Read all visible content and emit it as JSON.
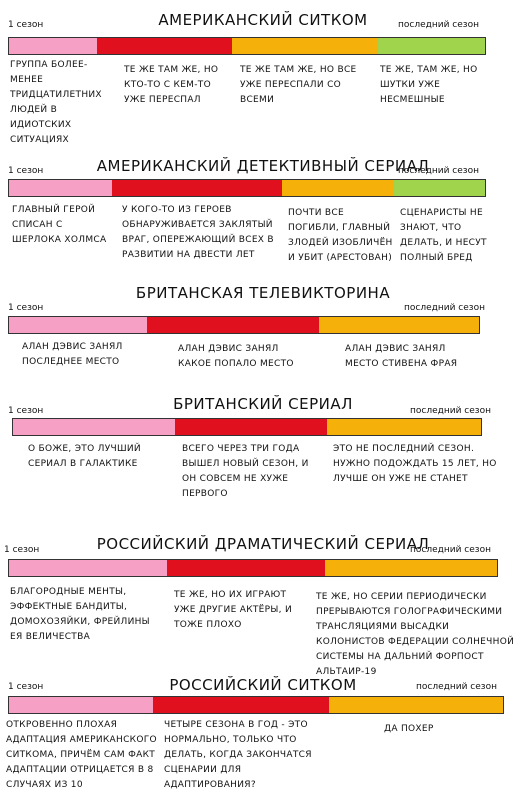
{
  "colors": {
    "pink": "#f5a0c4",
    "red": "#e0101e",
    "orange": "#f5b10a",
    "green": "#9fd44c"
  },
  "common": {
    "first_season": "1 сезон",
    "last_season": "последний сезон"
  },
  "sections": [
    {
      "title": "АМЕРИКАНСКИЙ СИТКОМ",
      "notes": [
        "ГРУППА БОЛЕЕ-МЕНЕЕ ТРИДЦАТИЛЕТНИХ ЛЮДЕЙ В ИДИОТСКИХ СИТУАЦИЯХ",
        "ТЕ ЖЕ ТАМ ЖЕ, НО КТО-ТО С КЕМ-ТО УЖЕ ПЕРЕСПАЛ",
        "ТЕ ЖЕ ТАМ ЖЕ, НО ВСЕ УЖЕ ПЕРЕСПАЛИ СО ВСЕМИ",
        "ТЕ ЖЕ, ТАМ ЖЕ, НО ШУТКИ УЖЕ НЕСМЕШНЫЕ"
      ]
    },
    {
      "title": "АМЕРИКАНСКИЙ ДЕТЕКТИВНЫЙ СЕРИАЛ",
      "notes": [
        "ГЛАВНЫЙ ГЕРОЙ СПИСАН С ШЕРЛОКА ХОЛМСА",
        "У КОГО-ТО ИЗ ГЕРОЕВ ОБНАРУЖИВАЕТСЯ ЗАКЛЯТЫЙ ВРАГ, ОПЕРЕЖАЮЩИЙ ВСЕХ В РАЗВИТИИ НА ДВЕСТИ ЛЕТ",
        "ПОЧТИ ВСЕ ПОГИБЛИ, ГЛАВНЫЙ ЗЛОДЕЙ ИЗОБЛИЧЁН И УБИТ (АРЕСТОВАН)",
        "СЦЕНАРИСТЫ НЕ ЗНАЮТ, ЧТО ДЕЛАТЬ, И НЕСУТ ПОЛНЫЙ БРЕД"
      ]
    },
    {
      "title": "БРИТАНСКАЯ ТЕЛЕВИКТОРИНА",
      "notes": [
        "АЛАН ДЭВИС ЗАНЯЛ ПОСЛЕДНЕЕ МЕСТО",
        "АЛАН ДЭВИС ЗАНЯЛ КАКОЕ ПОПАЛО МЕСТО",
        "АЛАН ДЭВИС ЗАНЯЛ МЕСТО СТИВЕНА ФРАЯ"
      ]
    },
    {
      "title": "БРИТАНСКИЙ СЕРИАЛ",
      "notes": [
        "О БОЖЕ, ЭТО ЛУЧШИЙ СЕРИАЛ В ГАЛАКТИКЕ",
        "ВСЕГО ЧЕРЕЗ ТРИ ГОДА ВЫШЕЛ НОВЫЙ СЕЗОН, И ОН СОВСЕМ НЕ ХУЖЕ ПЕРВОГО",
        "ЭТО НЕ ПОСЛЕДНИЙ СЕЗОН. НУЖНО ПОДОЖДАТЬ 15 ЛЕТ, НО ЛУЧШЕ ОН УЖЕ НЕ СТАНЕТ"
      ]
    },
    {
      "title": "РОССИЙСКИЙ ДРАМАТИЧЕСКИЙ СЕРИАЛ",
      "notes": [
        "БЛАГОРОДНЫЕ МЕНТЫ, ЭФФЕКТНЫЕ БАНДИТЫ, ДОМОХОЗЯЙКИ, ФРЕЙЛИНЫ ЕЯ ВЕЛИЧЕСТВА",
        "ТЕ ЖЕ, НО ИХ ИГРАЮТ УЖЕ ДРУГИЕ АКТЁРЫ, И ТОЖЕ ПЛОХО",
        "ТЕ ЖЕ, НО СЕРИИ ПЕРИОДИЧЕСКИ ПРЕРЫВАЮТСЯ ГОЛОГРАФИЧЕСКИМИ ТРАНСЛЯЦИЯМИ ВЫСАДКИ КОЛОНИСТОВ ФЕДЕРАЦИИ СОЛНЕЧНОЙ СИСТЕМЫ НА ДАЛЬНИЙ ФОРПОСТ АЛЬТАИР-19"
      ]
    },
    {
      "title": "РОССИЙСКИЙ СИТКОМ",
      "notes": [
        "ОТКРОВЕННО ПЛОХАЯ АДАПТАЦИЯ АМЕРИКАНСКОГО СИТКОМА, ПРИЧЁМ САМ ФАКТ АДАПТАЦИИ ОТРИЦАЕТСЯ В 8 СЛУЧАЯХ ИЗ 10",
        "ЧЕТЫРЕ СЕЗОНА В ГОД - ЭТО НОРМАЛЬНО, ТОЛЬКО ЧТО ДЕЛАТЬ, КОГДА ЗАКОНЧАТСЯ СЦЕНАРИИ ДЛЯ АДАПТИРОВАНИЯ?",
        "ДА ПОХЕР"
      ]
    }
  ]
}
